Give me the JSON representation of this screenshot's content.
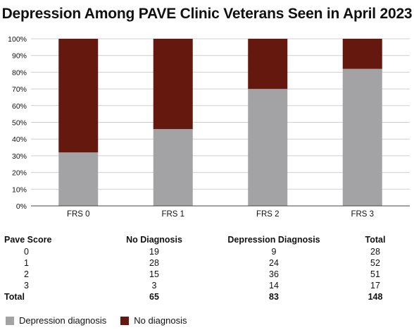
{
  "chart_data": {
    "type": "bar",
    "stacked": true,
    "title": "Depression Among PAVE Clinic Veterans Seen in April 2023",
    "categories": [
      "FRS 0",
      "FRS 1",
      "FRS 2",
      "FRS 3"
    ],
    "series": [
      {
        "name": "Depression diagnosis",
        "color": "#a3a3a5",
        "values": [
          32,
          46,
          70,
          82
        ]
      },
      {
        "name": "No diagnosis",
        "color": "#64180e",
        "values": [
          68,
          54,
          30,
          18
        ]
      }
    ],
    "y_ticks": [
      "0%",
      "10%",
      "20%",
      "30%",
      "40%",
      "50%",
      "60%",
      "70%",
      "80%",
      "90%",
      "100%"
    ],
    "ylim": [
      0,
      100
    ],
    "grid": true,
    "legend_position": "bottom-left"
  },
  "table": {
    "headers": [
      "Pave Score",
      "No Diagnosis",
      "Depression Diagnosis",
      "Total"
    ],
    "rows": [
      [
        "0",
        "19",
        "9",
        "28"
      ],
      [
        "1",
        "28",
        "24",
        "52"
      ],
      [
        "2",
        "15",
        "36",
        "51"
      ],
      [
        "3",
        "3",
        "14",
        "17"
      ],
      [
        "Total",
        "65",
        "83",
        "148"
      ]
    ]
  },
  "legend": [
    {
      "label": "Depression diagnosis",
      "color": "#a3a3a5"
    },
    {
      "label": "No diagnosis",
      "color": "#64180e"
    }
  ]
}
